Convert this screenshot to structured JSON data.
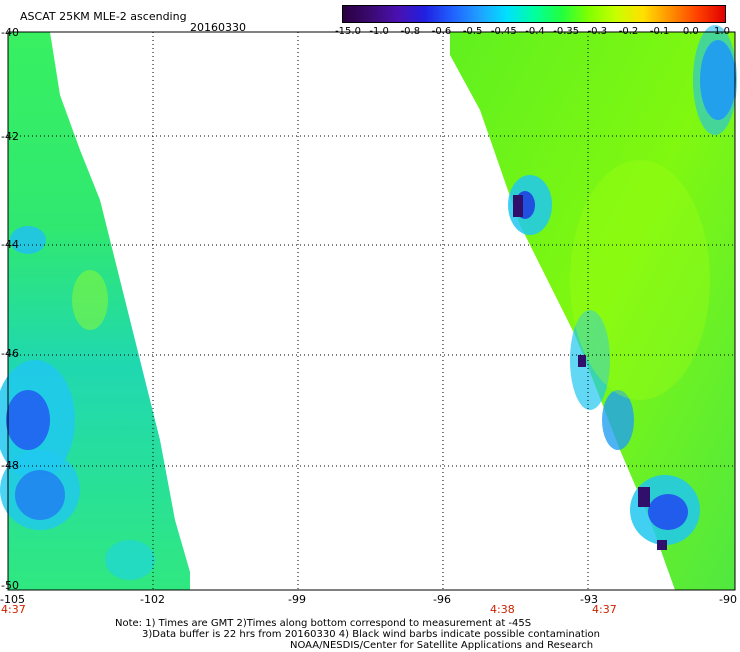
{
  "header": {
    "title": "ASCAT 25KM MLE-2 ascending",
    "date": "20160330"
  },
  "colorbar": {
    "labels": [
      "-15.0",
      "-1.0",
      "-0.8",
      "-0.6",
      "-0.5",
      "-0.45",
      "-0.4",
      "-0.35",
      "-0.3",
      "-0.2",
      "-0.1",
      "0.0",
      "1.0"
    ],
    "colors": [
      "#2a0040",
      "#3a0a70",
      "#4a10b0",
      "#2020e0",
      "#2060ff",
      "#20a0ff",
      "#00e0ff",
      "#00ffa0",
      "#20ff40",
      "#80ff00",
      "#c8ff00",
      "#ffe000",
      "#ff9000",
      "#ff4000",
      "#e00000"
    ]
  },
  "map": {
    "lat_labels": [
      "-40",
      "-42",
      "-44",
      "-46",
      "-48",
      "-50"
    ],
    "lon_labels": [
      "-105",
      "-102",
      "-99",
      "-96",
      "-93",
      "-90"
    ],
    "time_labels": [
      "4:37",
      "4:38",
      "4:37"
    ]
  },
  "notes": {
    "line1": "Note: 1) Times are GMT 2)Times along bottom correspond to measurement at -45S",
    "line2": "3)Data buffer is 22 hrs from 20160330 4) Black wind barbs indicate possible contamination",
    "line3": "NOAA/NESDIS/Center for Satellite Applications and Research"
  }
}
